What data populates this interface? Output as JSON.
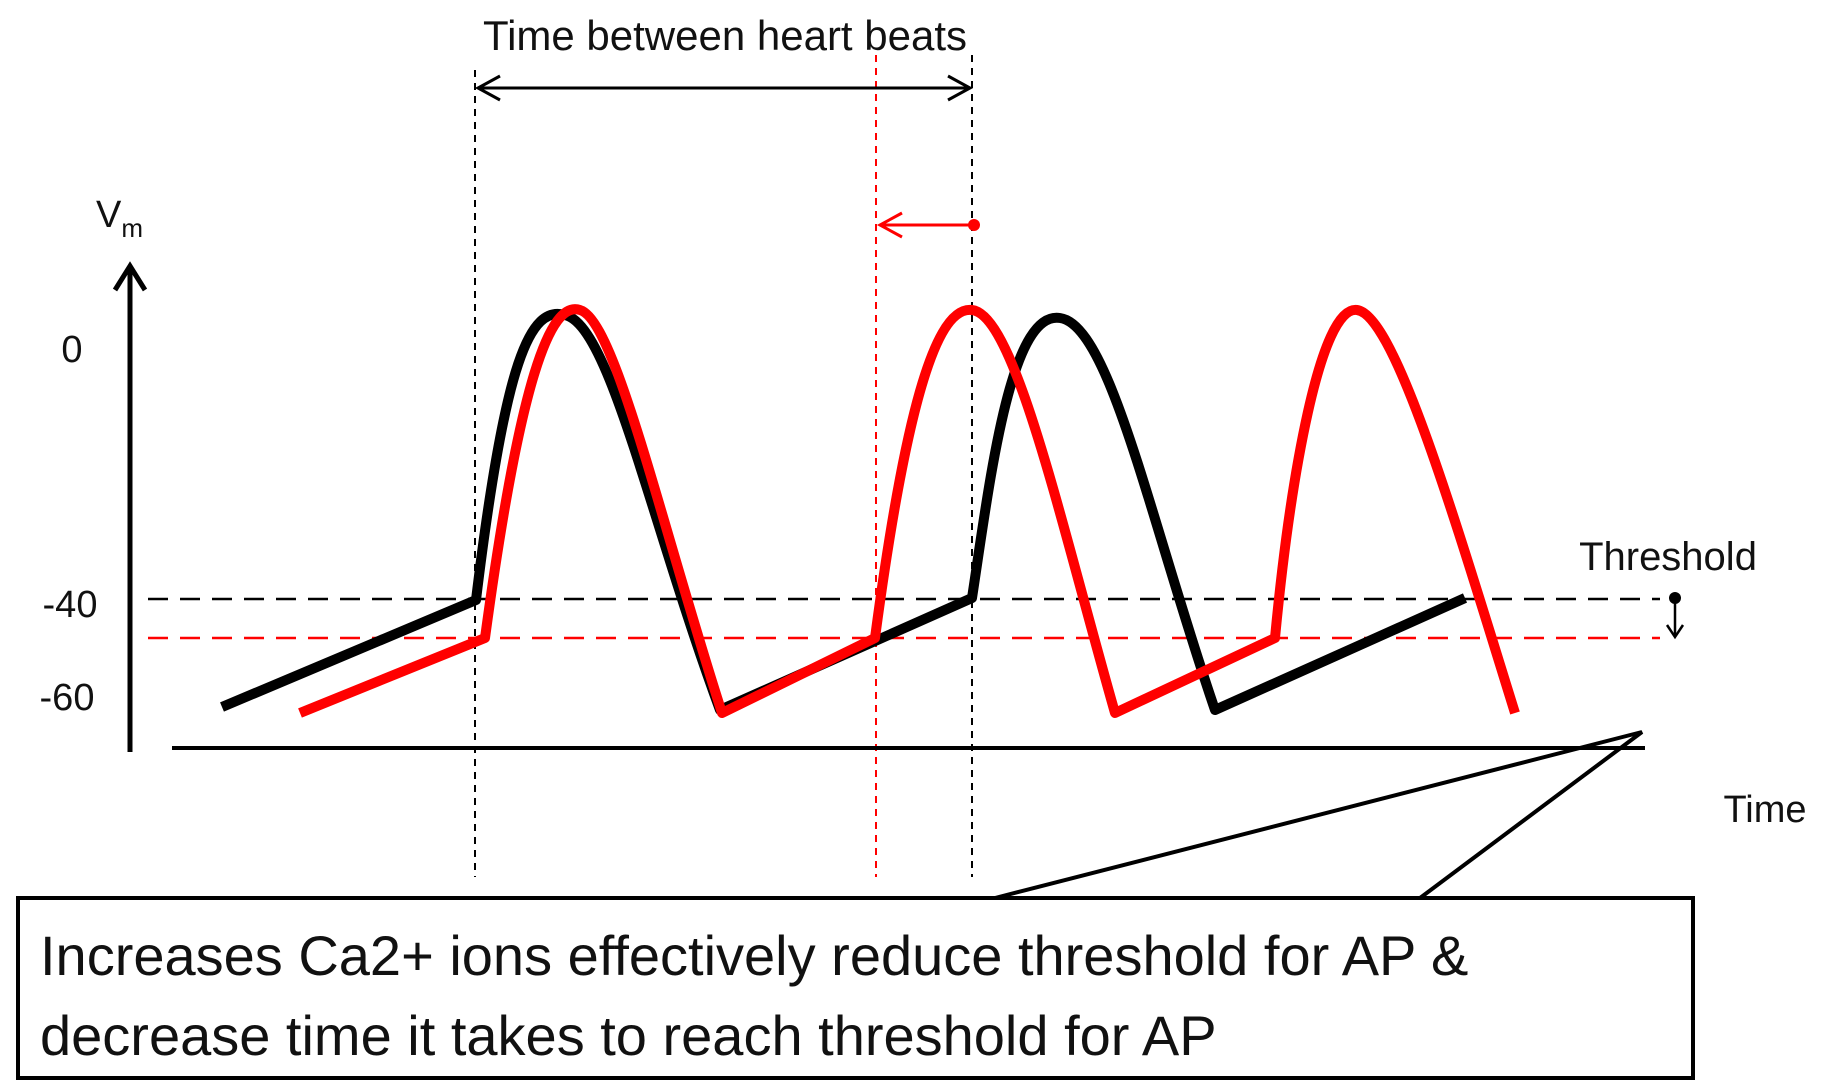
{
  "title": "Time between heart beats",
  "y_axis": {
    "label": "V",
    "label_subscript": "m",
    "ticks": [
      "0",
      "-40",
      "-60"
    ]
  },
  "x_axis": {
    "label": "Time"
  },
  "threshold_label": "Threshold",
  "callout": {
    "line1": "Increases Ca2+ ions effectively reduce threshold for AP &",
    "line2": "decrease time it takes to reach threshold for AP"
  },
  "colors": {
    "baseline_trace": "#000000",
    "increased_calcium_trace": "#ff0000"
  }
}
